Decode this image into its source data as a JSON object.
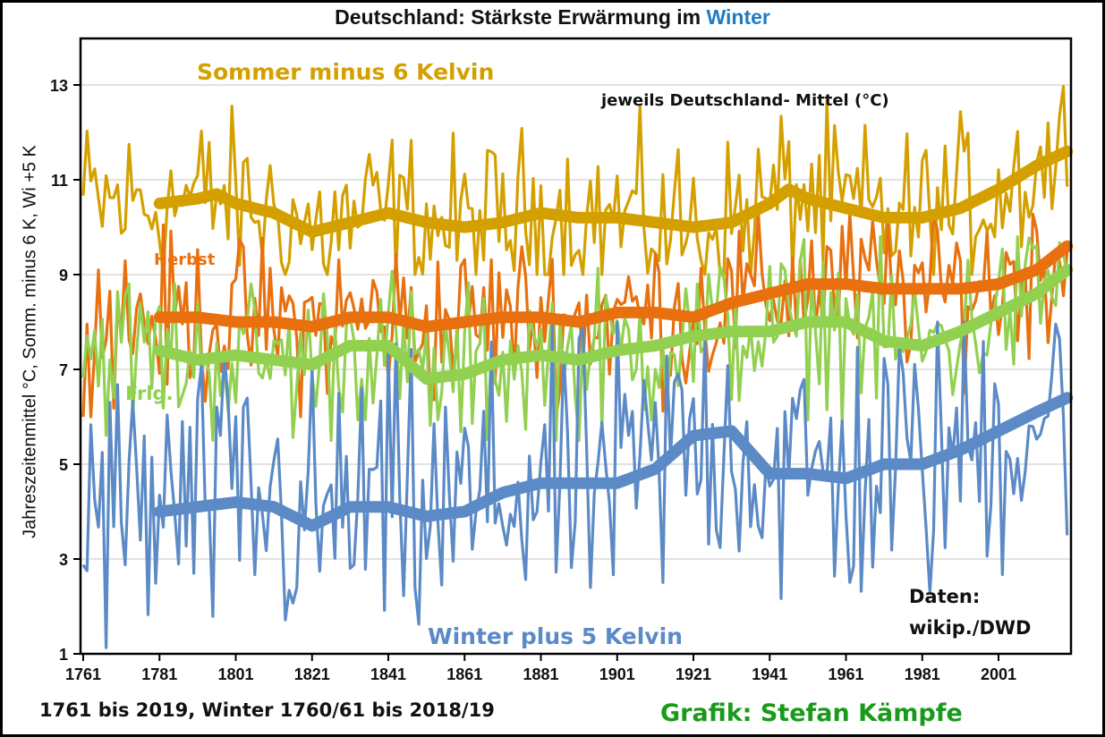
{
  "chart_data": {
    "type": "line",
    "title": "Deutschland: Stärkste Erwärmung im",
    "title_highlight": "Winter",
    "title_highlight_color": "#1f7bc1",
    "ylabel": "Jahreszeitenmittel °C, Somm. minus 6 K, Wi +5 K",
    "xlabel": "",
    "xlim": [
      1761,
      2019
    ],
    "ylim": [
      1,
      14
    ],
    "x_ticks": [
      1761,
      1781,
      1801,
      1821,
      1841,
      1861,
      1881,
      1901,
      1921,
      1941,
      1961,
      1981,
      2001
    ],
    "y_ticks": [
      1,
      3,
      5,
      7,
      9,
      11,
      13
    ],
    "grid": "horizontal",
    "annotations": [
      {
        "text": "Sommer minus 6 Kelvin",
        "color": "#d4a000"
      },
      {
        "text": "jeweils Deutschland- Mittel (°C)",
        "color": "#111111"
      },
      {
        "text": "Herbst",
        "color": "#e8700e"
      },
      {
        "text": "Frlg.",
        "color": "#92d050"
      },
      {
        "text": "Winter plus 5 Kelvin",
        "color": "#5b8ac6"
      },
      {
        "text": "Daten:",
        "color": "#111111"
      },
      {
        "text": "wikip./DWD",
        "color": "#111111"
      }
    ],
    "series": [
      {
        "name": "Sommer minus 6 Kelvin",
        "color": "#d4a000",
        "smoothed_x": [
          1781,
          1791,
          1796,
          1801,
          1811,
          1821,
          1831,
          1841,
          1851,
          1861,
          1871,
          1881,
          1891,
          1901,
          1911,
          1921,
          1931,
          1941,
          1946,
          1951,
          1961,
          1971,
          1981,
          1991,
          2001,
          2011,
          2019
        ],
        "smoothed_y": [
          10.5,
          10.6,
          10.7,
          10.5,
          10.3,
          9.9,
          10.1,
          10.3,
          10.1,
          10.0,
          10.1,
          10.3,
          10.2,
          10.2,
          10.1,
          10.0,
          10.1,
          10.5,
          10.8,
          10.6,
          10.4,
          10.2,
          10.2,
          10.4,
          10.8,
          11.3,
          11.6
        ],
        "annual_range": [
          9.0,
          13.6
        ]
      },
      {
        "name": "Herbst",
        "color": "#e8700e",
        "smoothed_x": [
          1781,
          1791,
          1801,
          1811,
          1821,
          1831,
          1841,
          1851,
          1861,
          1871,
          1881,
          1891,
          1901,
          1911,
          1921,
          1931,
          1941,
          1951,
          1961,
          1971,
          1981,
          1991,
          2001,
          2011,
          2019
        ],
        "smoothed_y": [
          8.1,
          8.1,
          8.0,
          8.0,
          7.9,
          8.1,
          8.1,
          7.9,
          8.0,
          8.1,
          8.1,
          8.0,
          8.2,
          8.2,
          8.1,
          8.4,
          8.6,
          8.8,
          8.8,
          8.7,
          8.7,
          8.7,
          8.8,
          9.1,
          9.6
        ],
        "annual_range": [
          6.0,
          10.3
        ]
      },
      {
        "name": "Frlg.",
        "color": "#92d050",
        "smoothed_x": [
          1781,
          1791,
          1801,
          1811,
          1821,
          1831,
          1841,
          1851,
          1861,
          1871,
          1881,
          1891,
          1901,
          1911,
          1921,
          1931,
          1941,
          1951,
          1961,
          1971,
          1981,
          1991,
          2001,
          2011,
          2019
        ],
        "smoothed_y": [
          7.4,
          7.2,
          7.3,
          7.2,
          7.1,
          7.5,
          7.5,
          6.8,
          6.9,
          7.2,
          7.3,
          7.2,
          7.4,
          7.5,
          7.7,
          7.8,
          7.8,
          8.0,
          8.0,
          7.6,
          7.5,
          7.8,
          8.2,
          8.6,
          9.1
        ],
        "annual_range": [
          5.5,
          9.8
        ]
      },
      {
        "name": "Winter plus 5 Kelvin",
        "color": "#5b8ac6",
        "smoothed_x": [
          1781,
          1791,
          1801,
          1811,
          1821,
          1831,
          1841,
          1851,
          1861,
          1871,
          1881,
          1891,
          1901,
          1911,
          1921,
          1931,
          1941,
          1951,
          1961,
          1971,
          1981,
          1991,
          2001,
          2011,
          2019
        ],
        "smoothed_y": [
          4.0,
          4.1,
          4.2,
          4.1,
          3.7,
          4.1,
          4.1,
          3.9,
          4.0,
          4.4,
          4.6,
          4.6,
          4.6,
          4.9,
          5.6,
          5.7,
          4.8,
          4.8,
          4.7,
          5.0,
          5.0,
          5.3,
          5.7,
          6.1,
          6.4
        ],
        "annual_range": [
          0.5,
          8.0
        ]
      }
    ]
  },
  "labels": {
    "sommer": "Sommer minus 6 Kelvin",
    "mittel": "jeweils Deutschland- Mittel (°C)",
    "herbst": "Herbst",
    "fruehling": "Frlg.",
    "winter": "Winter plus 5 Kelvin",
    "daten1": "Daten:",
    "daten2": "wikip./DWD"
  },
  "footer": {
    "left": "1761 bis 2019, Winter 1760/61 bis 2018/19",
    "right": "Grafik: Stefan Kämpfe"
  }
}
